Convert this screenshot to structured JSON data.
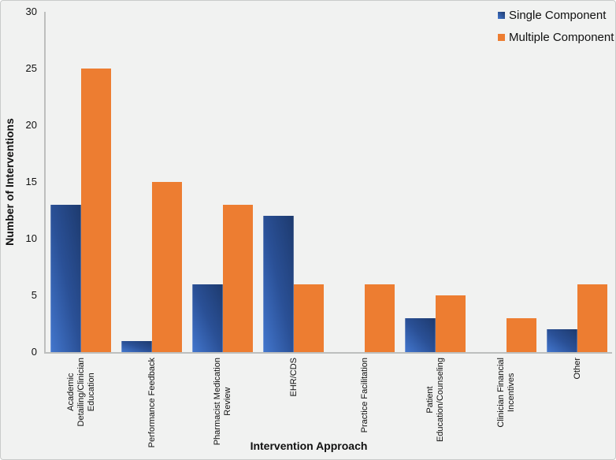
{
  "chart_data": {
    "type": "bar",
    "title": "",
    "xlabel": "Intervention Approach",
    "ylabel": "Number of Interventions",
    "ylim": [
      0,
      30
    ],
    "yticks": [
      0,
      5,
      10,
      15,
      20,
      25,
      30
    ],
    "grid": false,
    "legend_position": "top-right",
    "categories": [
      "Academic Detailing/Clinician Education",
      "Performance Feedback",
      "Pharmacist Medication Review",
      "EHR/CDS",
      "Practice Facilitation",
      "Patient Education/Counseling",
      "Clinician Financial Incentives",
      "Other"
    ],
    "categories_display_lines": [
      [
        "Academic",
        "Detailing/Clinician",
        "Education"
      ],
      [
        "Performance Feedback"
      ],
      [
        "Pharmacist Medication",
        "Review"
      ],
      [
        "EHR/CDS"
      ],
      [
        "Practice Facilitation"
      ],
      [
        "Patient",
        "Education/Counseling"
      ],
      [
        "Clinician Financial",
        "Incentives"
      ],
      [
        "Other"
      ]
    ],
    "series": [
      {
        "name": "Single Component",
        "values": [
          13,
          1,
          6,
          12,
          0,
          3,
          0,
          2
        ],
        "color": "#2F5DA8",
        "gradient": [
          "#4377CE",
          "#2A5096",
          "#1D3A6E"
        ]
      },
      {
        "name": "Multiple Component",
        "values": [
          25,
          15,
          13,
          6,
          6,
          5,
          3,
          6
        ],
        "color": "#ED7D31"
      }
    ],
    "colors": {
      "axis_line": "#BDBFBE",
      "background": "#F1F2F1",
      "text": "#111111"
    }
  }
}
